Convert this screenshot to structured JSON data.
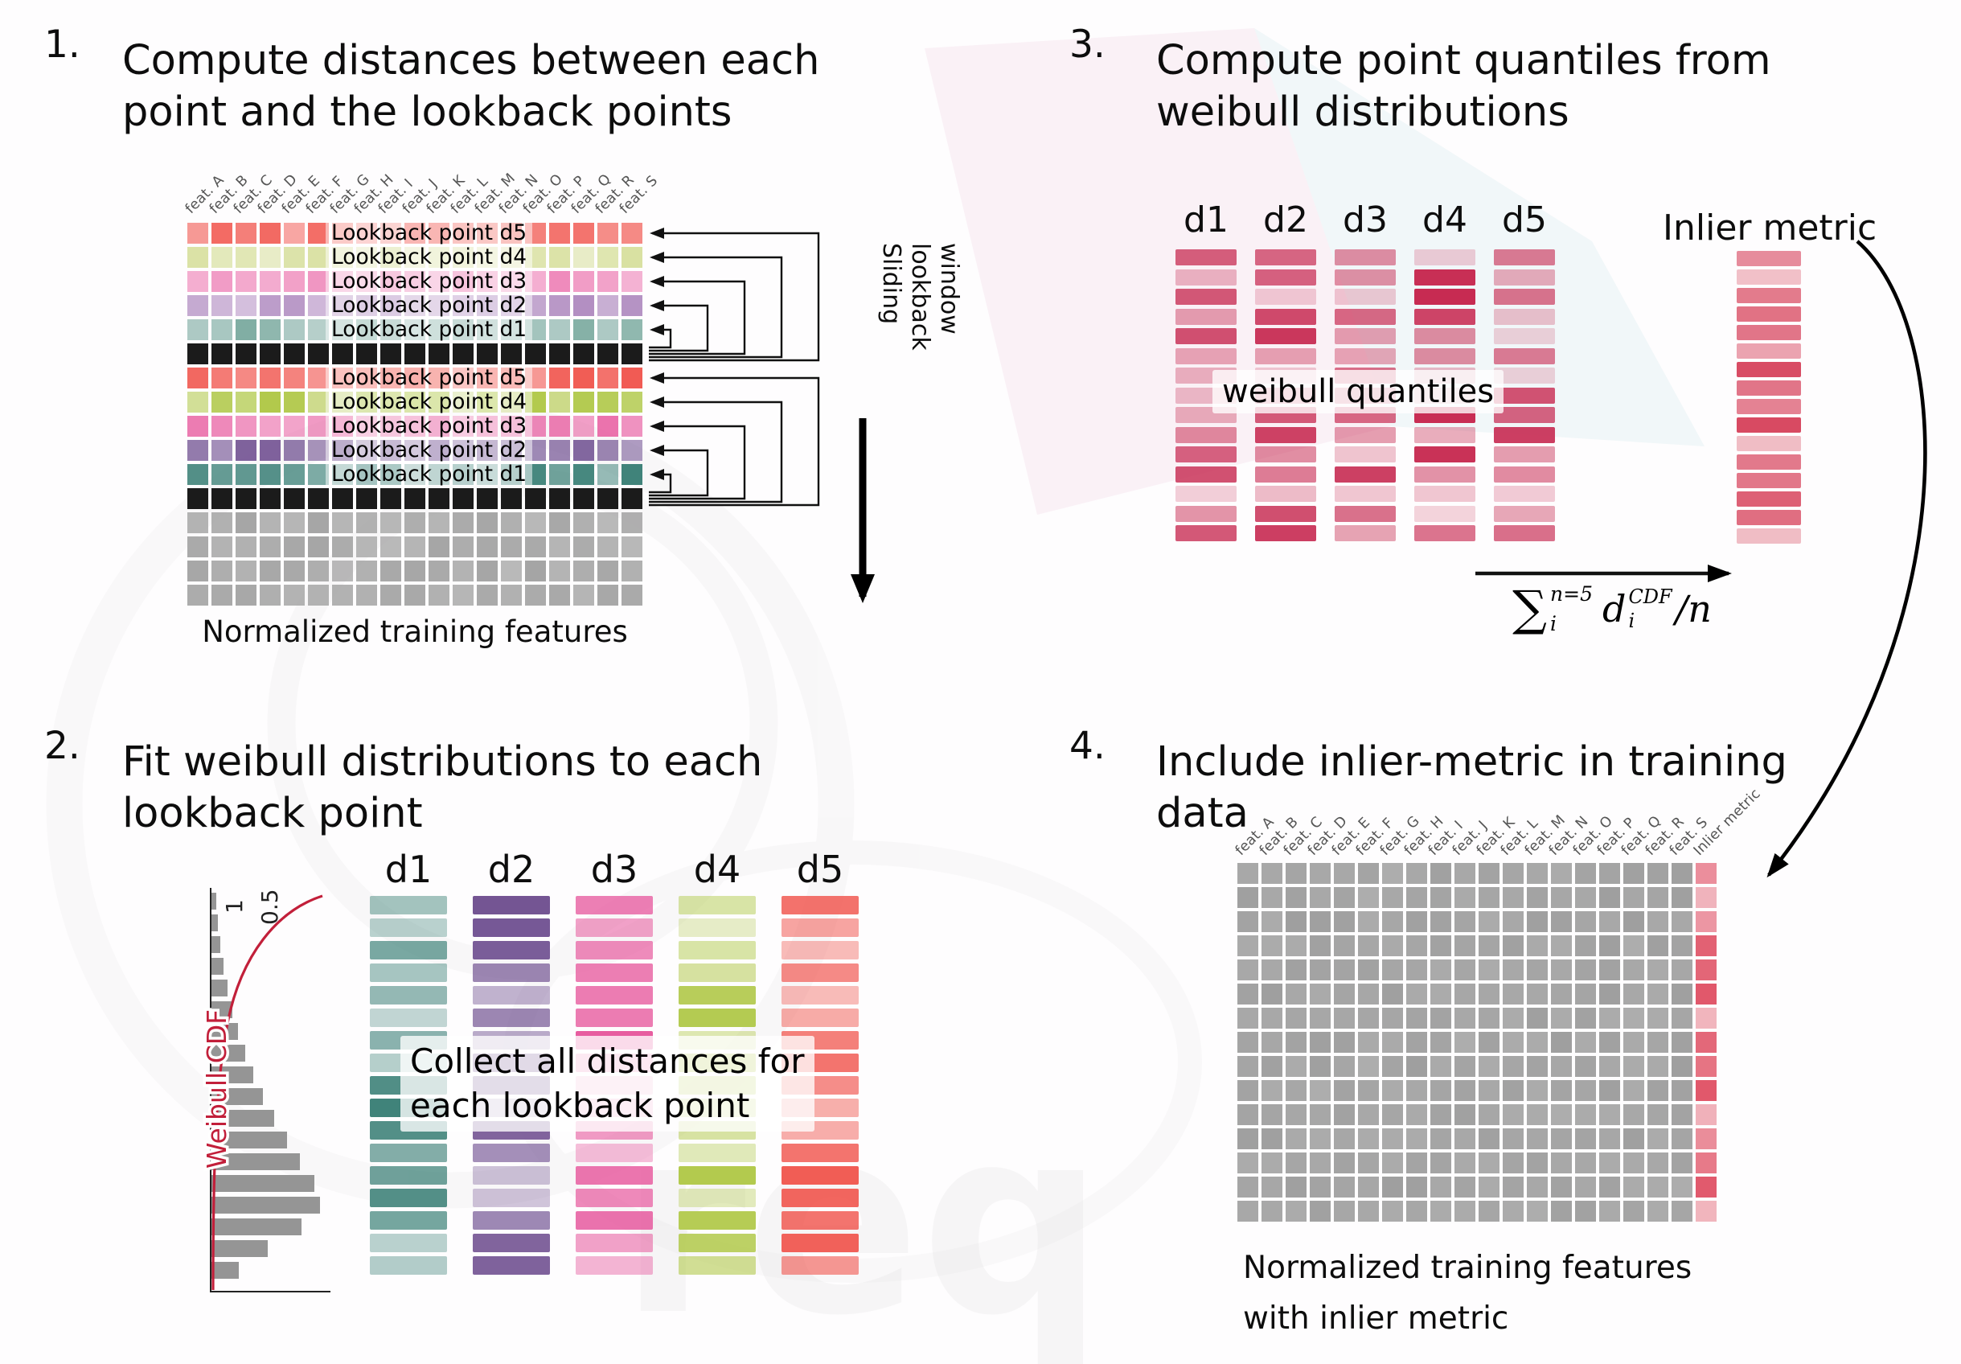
{
  "colors": {
    "d5a": "#f2655e",
    "d4a": "#d8e09f",
    "d3a": "#ee86b9",
    "d2a": "#b18dc1",
    "d1a": "#7eaca2",
    "d5b": "#f04f47",
    "d4b": "#b2c94c",
    "d3b": "#e75b9f",
    "d2b": "#6f4f90",
    "d1b": "#40837a",
    "black": "#1b1b1b",
    "gray": "#a5a5a5",
    "quantile": "#c72b52",
    "inlier": "#d84a62",
    "p4_gray": "#9f9f9f",
    "p4_inlier": "#e05568",
    "weibull_curve": "#c21f3a",
    "hist_bar": "#8c8c8c"
  },
  "feature_headers": [
    "feat. A",
    "feat. B",
    "feat. C",
    "feat. D",
    "feat. E",
    "feat. F",
    "feat. G",
    "feat. H",
    "feat. I",
    "feat. J",
    "feat. K",
    "feat. L",
    "feat. M",
    "feat. N",
    "feat. O",
    "feat. P",
    "feat. Q",
    "feat. R",
    "feat. S"
  ],
  "p1": {
    "number": "1.",
    "title_lines": [
      "Compute distances between each",
      "point and the lookback points"
    ],
    "rows": [
      {
        "kind": "d5a",
        "label": "Lookback point d5"
      },
      {
        "kind": "d4a",
        "label": "Lookback point d4"
      },
      {
        "kind": "d3a",
        "label": "Lookback point d3"
      },
      {
        "kind": "d2a",
        "label": "Lookback point d2"
      },
      {
        "kind": "d1a",
        "label": "Lookback point d1"
      },
      {
        "kind": "black"
      },
      {
        "kind": "d5b",
        "label": "Lookback point d5"
      },
      {
        "kind": "d4b",
        "label": "Lookback point d4"
      },
      {
        "kind": "d3b",
        "label": "Lookback point d3"
      },
      {
        "kind": "d2b",
        "label": "Lookback point d2"
      },
      {
        "kind": "d1b",
        "label": "Lookback point d1"
      },
      {
        "kind": "black"
      },
      {
        "kind": "gray"
      },
      {
        "kind": "gray"
      },
      {
        "kind": "gray"
      },
      {
        "kind": "gray"
      }
    ],
    "sliding_words": [
      "Sliding",
      "lookback",
      "window"
    ],
    "caption": "Normalized training features"
  },
  "p2": {
    "number": "2.",
    "title_lines": [
      "Fit weibull distributions to each",
      "lookback point"
    ],
    "plot": {
      "label": "Weibull CDF",
      "ticks": [
        "1",
        "0.5"
      ],
      "hist": [
        6,
        8,
        11,
        15,
        20,
        26,
        33,
        42,
        52,
        64,
        78,
        94,
        110,
        128,
        135,
        112,
        70,
        34
      ]
    },
    "columns": [
      {
        "label": "d1",
        "color": "d1b"
      },
      {
        "label": "d2",
        "color": "d2b"
      },
      {
        "label": "d3",
        "color": "d3b"
      },
      {
        "label": "d4",
        "color": "d4b"
      },
      {
        "label": "d5",
        "color": "d5b"
      }
    ],
    "bars_per_column": 17,
    "overlay_lines": [
      "Collect all distances for",
      "each lookback point"
    ]
  },
  "p3": {
    "number": "3.",
    "title_lines": [
      "Compute point quantiles from",
      "weibull distributions"
    ],
    "columns": [
      {
        "label": "d1"
      },
      {
        "label": "d2"
      },
      {
        "label": "d3"
      },
      {
        "label": "d4"
      },
      {
        "label": "d5"
      }
    ],
    "bars_per_column": 15,
    "overlay": "weibull quantiles",
    "inlier_label": "Inlier metric",
    "inlier_bars": 16,
    "formula": {
      "sigma": "∑",
      "upper": "n=5",
      "lower": "i",
      "var": "d",
      "var_sup": "CDF",
      "var_sub": "i",
      "tail": "/n"
    }
  },
  "p4": {
    "number": "4.",
    "title_lines": [
      "Include inlier-metric in training",
      "data"
    ],
    "rows": 15,
    "inlier_header": "Inlier metric",
    "caption_lines": [
      "Normalized training features",
      "with inlier metric"
    ]
  },
  "watermark": {
    "text": "req"
  }
}
